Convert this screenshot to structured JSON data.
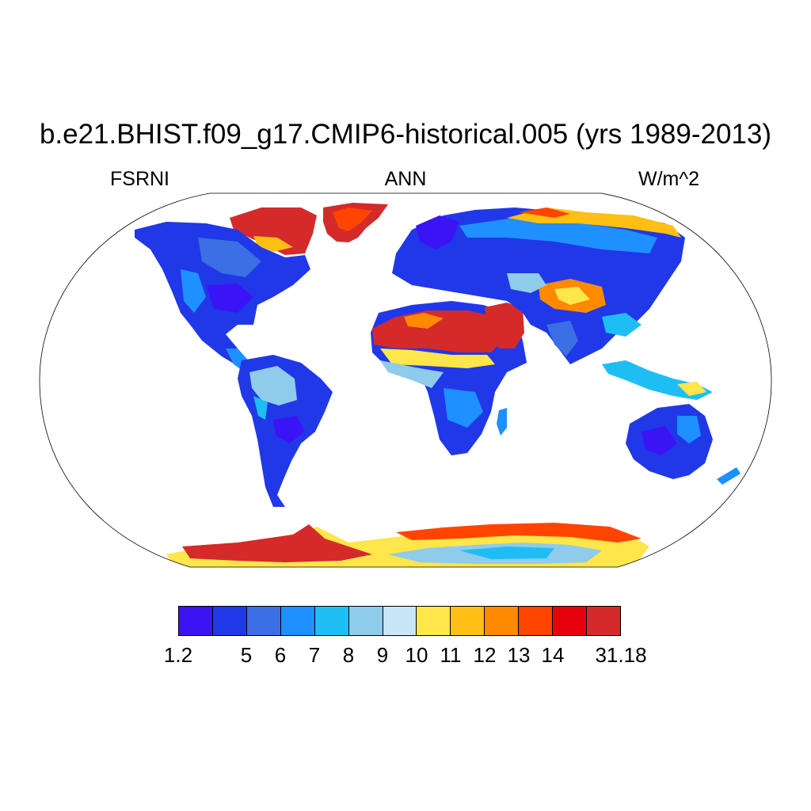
{
  "title": "b.e21.BHIST.f09_g17.CMIP6-historical.005 (yrs 1989-2013)",
  "subtitle_left": "FSRNI",
  "subtitle_center": "ANN",
  "subtitle_right": "W/m^2",
  "colorbar": {
    "colors": [
      "#3a14f5",
      "#2038e8",
      "#3b6fe3",
      "#1e90ff",
      "#1ebef5",
      "#8fcbeb",
      "#c8e6f5",
      "#ffe64a",
      "#ffbf14",
      "#ff8a00",
      "#ff4400",
      "#e8000c",
      "#d42a2a"
    ],
    "tick_labels": [
      "1.2",
      "5",
      "6",
      "7",
      "8",
      "9",
      "10",
      "11",
      "12",
      "13",
      "14",
      "31.18"
    ],
    "tick_boundaries": [
      0,
      2,
      3,
      4,
      5,
      6,
      7,
      8,
      9,
      10,
      11,
      13
    ]
  },
  "map": {
    "projection": "Robinson",
    "ocean_color": "#ffffff",
    "coastline_color": "#000000"
  }
}
